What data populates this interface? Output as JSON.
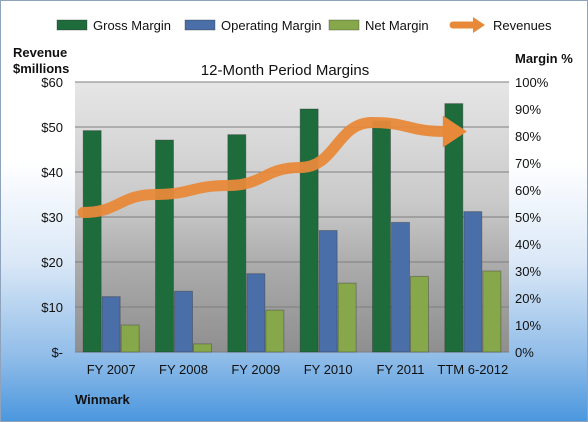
{
  "chart_data": {
    "type": "bar",
    "title": "12-Month Period Margins",
    "categories": [
      "FY 2007",
      "FY 2008",
      "FY 2009",
      "FY 2010",
      "FY 2011",
      "TTM 6-2012"
    ],
    "series": [
      {
        "name": "Gross Margin",
        "axis": "right",
        "values": [
          82,
          78.5,
          80.5,
          90,
          85.5,
          92
        ],
        "color": "#1e6b3c"
      },
      {
        "name": "Operating Margin",
        "axis": "right",
        "values": [
          20.5,
          22.5,
          29,
          45,
          48,
          52
        ],
        "color": "#4a6ea8"
      },
      {
        "name": "Net Margin",
        "axis": "right",
        "values": [
          10,
          3,
          15.5,
          25.5,
          28,
          30
        ],
        "color": "#87a84a"
      },
      {
        "name": "Revenues",
        "axis": "left",
        "type": "line",
        "values": [
          31,
          35,
          37,
          41,
          51,
          49
        ],
        "color": "#e8893a"
      }
    ],
    "yleft": {
      "label_line1": "Revenue",
      "label_line2": "$millions",
      "ylim": [
        0,
        60
      ],
      "ticks": [
        "$-",
        "$10",
        "$20",
        "$30",
        "$40",
        "$50",
        "$60"
      ]
    },
    "yright": {
      "label": "Margin %",
      "ylim": [
        0,
        100
      ],
      "ticks": [
        "0%",
        "10%",
        "20%",
        "30%",
        "40%",
        "50%",
        "60%",
        "70%",
        "80%",
        "90%",
        "100%"
      ]
    },
    "legend_position": "top",
    "grid": true
  },
  "footer": {
    "brand": "Winmark"
  }
}
